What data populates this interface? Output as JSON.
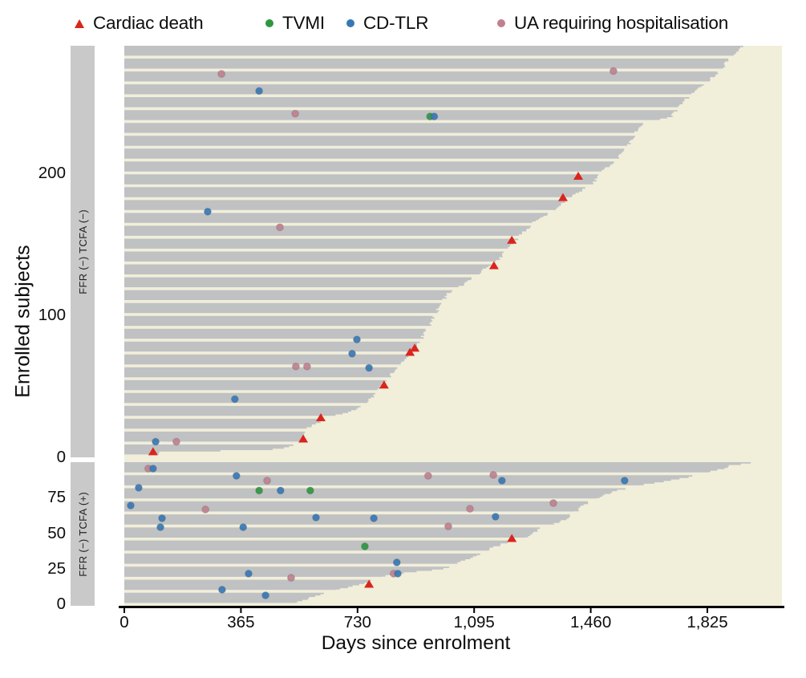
{
  "chart_data": {
    "type": "swimmer",
    "x_axis": {
      "label": "Days since enrolment",
      "ticks": [
        {
          "day": 0,
          "label": "0"
        },
        {
          "day": 365,
          "label": "365"
        },
        {
          "day": 730,
          "label": "730"
        },
        {
          "day": 1095,
          "label": "1,095"
        },
        {
          "day": 1460,
          "label": "1,460"
        },
        {
          "day": 1825,
          "label": "1,825"
        }
      ],
      "max_day": 2058
    },
    "y_axis": {
      "label": "Enrolled subjects"
    },
    "legend": [
      {
        "label": "Cardiac death",
        "marker": "triangle",
        "color": "#da251d"
      },
      {
        "label": "TVMI",
        "marker": "circle",
        "color": "#2f9740"
      },
      {
        "label": "CD-TLR",
        "marker": "circle",
        "color": "#3778b4"
      },
      {
        "label": "UA requiring hospitalisation",
        "marker": "circle",
        "color": "#c0808f"
      }
    ],
    "event_colors": {
      "cardiac_death": "#da251d",
      "tvmi": "#2f9740",
      "cd_tlr": "#3778b4",
      "ua_hosp": "#c0808f"
    },
    "bar_color": "#bfc1c3",
    "plot_bg": "#f1eeda",
    "panels": [
      {
        "strip_label": "FFR (−) TCFA (−)",
        "n_subjects": 290,
        "y_ticks": [
          {
            "row": 0,
            "label": "0"
          },
          {
            "row": 100,
            "label": "100"
          },
          {
            "row": 200,
            "label": "200"
          }
        ],
        "follow_up_envelope": [
          [
            290,
            1940
          ],
          [
            283,
            1903
          ],
          [
            274,
            1870
          ],
          [
            266,
            1832
          ],
          [
            257,
            1782
          ],
          [
            249,
            1744
          ],
          [
            240,
            1714
          ],
          [
            235,
            1619
          ],
          [
            226,
            1594
          ],
          [
            218,
            1574
          ],
          [
            209,
            1539
          ],
          [
            201,
            1494
          ],
          [
            192,
            1463
          ],
          [
            184,
            1398
          ],
          [
            175,
            1355
          ],
          [
            167,
            1288
          ],
          [
            158,
            1247
          ],
          [
            150,
            1212
          ],
          [
            141,
            1180
          ],
          [
            133,
            1130
          ],
          [
            124,
            1079
          ],
          [
            116,
            1017
          ],
          [
            107,
            986
          ],
          [
            99,
            971
          ],
          [
            90,
            946
          ],
          [
            82,
            926
          ],
          [
            74,
            911
          ],
          [
            65,
            861
          ],
          [
            57,
            831
          ],
          [
            48,
            796
          ],
          [
            40,
            766
          ],
          [
            33,
            715
          ],
          [
            28,
            640
          ],
          [
            20,
            565
          ],
          [
            12,
            552
          ],
          [
            7,
            510
          ],
          [
            5,
            450
          ],
          [
            4,
            110
          ],
          [
            2,
            100
          ],
          [
            0,
            60
          ]
        ],
        "events": [
          {
            "type": "ua_hosp",
            "day": 304,
            "row": 270
          },
          {
            "type": "ua_hosp",
            "day": 1531,
            "row": 272
          },
          {
            "type": "cd_tlr",
            "day": 422,
            "row": 258
          },
          {
            "type": "ua_hosp",
            "day": 535,
            "row": 242
          },
          {
            "type": "tvmi",
            "day": 957,
            "row": 240
          },
          {
            "type": "cd_tlr",
            "day": 970,
            "row": 240
          },
          {
            "type": "cd_tlr",
            "day": 261,
            "row": 173
          },
          {
            "type": "ua_hosp",
            "day": 487,
            "row": 162
          },
          {
            "type": "cardiac_death",
            "day": 1421,
            "row": 198
          },
          {
            "type": "cardiac_death",
            "day": 1373,
            "row": 183
          },
          {
            "type": "cardiac_death",
            "day": 1213,
            "row": 153
          },
          {
            "type": "cardiac_death",
            "day": 1157,
            "row": 135
          },
          {
            "type": "cd_tlr",
            "day": 728,
            "row": 83
          },
          {
            "type": "cardiac_death",
            "day": 909,
            "row": 77
          },
          {
            "type": "cardiac_death",
            "day": 894,
            "row": 74
          },
          {
            "type": "cd_tlr",
            "day": 713,
            "row": 73
          },
          {
            "type": "ua_hosp",
            "day": 537,
            "row": 64
          },
          {
            "type": "ua_hosp",
            "day": 572,
            "row": 64
          },
          {
            "type": "cd_tlr",
            "day": 766,
            "row": 63
          },
          {
            "type": "cardiac_death",
            "day": 813,
            "row": 51
          },
          {
            "type": "cd_tlr",
            "day": 346,
            "row": 41
          },
          {
            "type": "cardiac_death",
            "day": 615,
            "row": 28
          },
          {
            "type": "cardiac_death",
            "day": 560,
            "row": 13
          },
          {
            "type": "cd_tlr",
            "day": 98,
            "row": 11
          },
          {
            "type": "ua_hosp",
            "day": 163,
            "row": 11
          },
          {
            "type": "cardiac_death",
            "day": 90,
            "row": 4
          }
        ]
      },
      {
        "strip_label": "FFR (−) TCFA (+)",
        "n_subjects": 99,
        "y_ticks": [
          {
            "row": 0,
            "label": "0"
          },
          {
            "row": 25,
            "label": "25"
          },
          {
            "row": 50,
            "label": "50"
          },
          {
            "row": 75,
            "label": "75"
          }
        ],
        "follow_up_envelope": [
          [
            99,
            1958
          ],
          [
            98,
            1900
          ],
          [
            95,
            1870
          ],
          [
            92,
            1812
          ],
          [
            88,
            1737
          ],
          [
            84,
            1619
          ],
          [
            80,
            1544
          ],
          [
            75,
            1481
          ],
          [
            70,
            1438
          ],
          [
            64,
            1406
          ],
          [
            58,
            1368
          ],
          [
            53,
            1298
          ],
          [
            48,
            1268
          ],
          [
            44,
            1205
          ],
          [
            40,
            1155
          ],
          [
            34,
            1097
          ],
          [
            30,
            1054
          ],
          [
            25,
            1004
          ],
          [
            21,
            841
          ],
          [
            18,
            778
          ],
          [
            14,
            740
          ],
          [
            10,
            665
          ],
          [
            6,
            602
          ],
          [
            2,
            547
          ],
          [
            0,
            535
          ]
        ],
        "events": [
          {
            "type": "ua_hosp",
            "day": 75,
            "row": 95.5
          },
          {
            "type": "cd_tlr",
            "day": 90,
            "row": 95.5
          },
          {
            "type": "cd_tlr",
            "day": 351,
            "row": 90.4
          },
          {
            "type": "ua_hosp",
            "day": 951,
            "row": 90.4
          },
          {
            "type": "ua_hosp",
            "day": 1155,
            "row": 91
          },
          {
            "type": "ua_hosp",
            "day": 447,
            "row": 87
          },
          {
            "type": "cd_tlr",
            "day": 1182,
            "row": 87
          },
          {
            "type": "cd_tlr",
            "day": 1566,
            "row": 87
          },
          {
            "type": "cd_tlr",
            "day": 45,
            "row": 82
          },
          {
            "type": "tvmi",
            "day": 422,
            "row": 80
          },
          {
            "type": "cd_tlr",
            "day": 489,
            "row": 80
          },
          {
            "type": "tvmi",
            "day": 582,
            "row": 80
          },
          {
            "type": "ua_hosp",
            "day": 1343,
            "row": 71.2
          },
          {
            "type": "cd_tlr",
            "day": 20,
            "row": 69.5
          },
          {
            "type": "ua_hosp",
            "day": 1082,
            "row": 67.2
          },
          {
            "type": "ua_hosp",
            "day": 254,
            "row": 66.7
          },
          {
            "type": "cd_tlr",
            "day": 1162,
            "row": 61.6
          },
          {
            "type": "cd_tlr",
            "day": 600,
            "row": 61
          },
          {
            "type": "cd_tlr",
            "day": 118,
            "row": 60.5
          },
          {
            "type": "cd_tlr",
            "day": 781,
            "row": 60.5
          },
          {
            "type": "ua_hosp",
            "day": 1014,
            "row": 54.8
          },
          {
            "type": "cd_tlr",
            "day": 113,
            "row": 54.2
          },
          {
            "type": "cd_tlr",
            "day": 372,
            "row": 54.2
          },
          {
            "type": "cardiac_death",
            "day": 1213,
            "row": 46.3
          },
          {
            "type": "tvmi",
            "day": 753,
            "row": 40.7
          },
          {
            "type": "cd_tlr",
            "day": 853,
            "row": 29.4
          },
          {
            "type": "cd_tlr",
            "day": 389,
            "row": 21.5
          },
          {
            "type": "ua_hosp",
            "day": 843,
            "row": 21.5
          },
          {
            "type": "cd_tlr",
            "day": 856,
            "row": 21.5
          },
          {
            "type": "ua_hosp",
            "day": 522,
            "row": 18.6
          },
          {
            "type": "cardiac_death",
            "day": 766,
            "row": 14.1
          },
          {
            "type": "cd_tlr",
            "day": 306,
            "row": 10.2
          },
          {
            "type": "cd_tlr",
            "day": 442,
            "row": 6.2
          }
        ]
      }
    ]
  }
}
